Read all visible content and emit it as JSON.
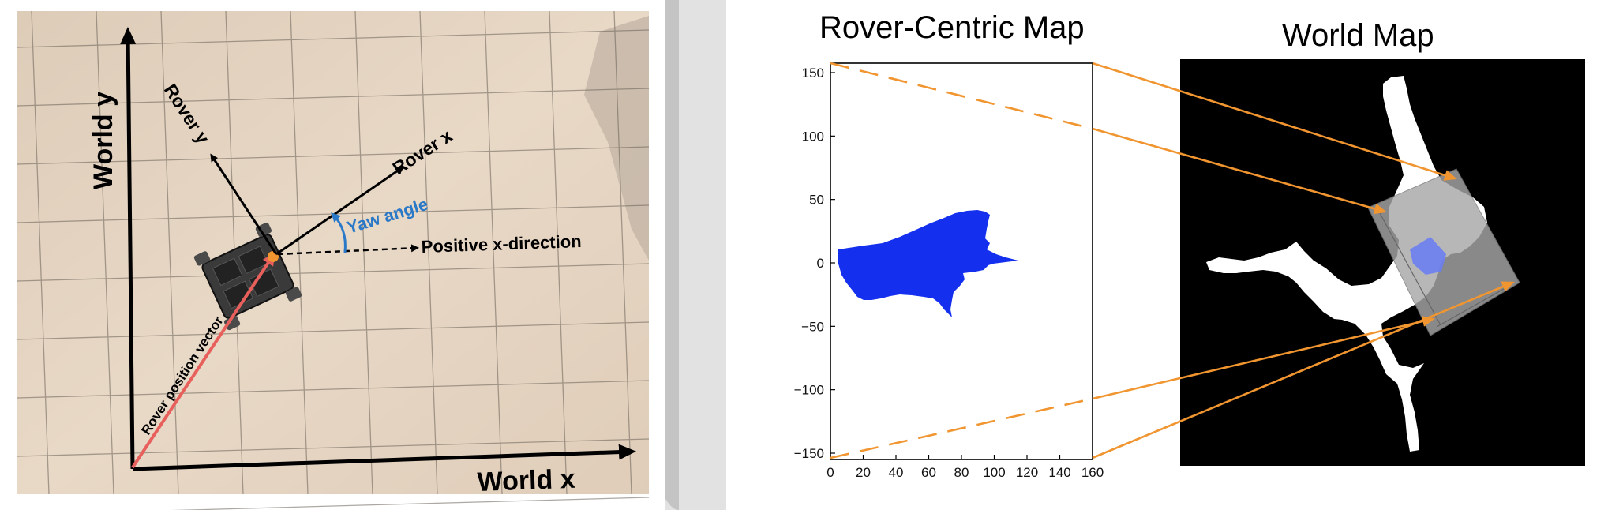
{
  "left_panel": {
    "world_x_label": "World x",
    "world_y_label": "World y",
    "rover_x_label": "Rover x",
    "rover_y_label": "Rover y",
    "yaw_label": "Yaw angle",
    "positive_x_label": "Positive x-direction",
    "position_vector_label": "Rover position vector"
  },
  "right_panel": {
    "rover_map_title": "Rover-Centric Map",
    "world_map_title": "World Map",
    "x_ticks": [
      "0",
      "20",
      "40",
      "60",
      "80",
      "100",
      "120",
      "140",
      "160"
    ],
    "y_ticks": [
      "150",
      "100",
      "50",
      "0",
      "−50",
      "−100",
      "−150"
    ]
  },
  "colors": {
    "terrain": "#e4d3c0",
    "arrow_orange": "#f0952f",
    "vector_red": "#e8605c",
    "yaw_blue": "#2a78c8",
    "navigable_blue": "#1430ee",
    "world_bg": "#000000"
  }
}
